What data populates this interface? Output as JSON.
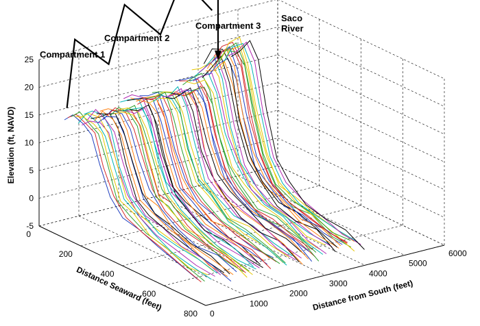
{
  "chart_data": {
    "type": "line",
    "subtype": "3d-profile-waterfall",
    "zlabel": "Elevation (ft, NAVD)",
    "xlabel": "Distance Seaward (feet)",
    "ylabel": "Distance from South (feet)",
    "xlim": [
      0,
      800
    ],
    "ylim": [
      0,
      6000
    ],
    "zlim": [
      -5,
      25
    ],
    "xticks": [
      "0",
      "200",
      "400",
      "600",
      "800"
    ],
    "yticks": [
      "0",
      "1000",
      "2000",
      "3000",
      "4000",
      "5000",
      "6000"
    ],
    "zticks": [
      "25",
      "20",
      "15",
      "10",
      "5",
      "0",
      "-5"
    ],
    "grid": true,
    "annotations": [
      {
        "text": "Compartment 1"
      },
      {
        "text": "Compartment 2"
      },
      {
        "text": "Compartment 3"
      },
      {
        "text": "Saco River"
      }
    ],
    "compartment_outline": {
      "color": "#000000",
      "points": [
        {
          "x": 0,
          "y": 700,
          "z": 15
        },
        {
          "x": 0,
          "y": 900,
          "z": 27
        },
        {
          "x": 0,
          "y": 1750,
          "z": 21
        },
        {
          "x": 0,
          "y": 2150,
          "z": 31
        },
        {
          "x": 0,
          "y": 3050,
          "z": 24
        },
        {
          "x": 0,
          "y": 3600,
          "z": 33
        },
        {
          "x": 0,
          "y": 4350,
          "z": 26
        }
      ]
    },
    "river_arrow": {
      "y": 4500,
      "z_from": 33,
      "z_to": 17
    },
    "profile_colors": [
      "#1f3fbf",
      "#d62728",
      "#2ca02c",
      "#e6c700",
      "#00b3b3",
      "#b026b0",
      "#000000",
      "#ff7f0e"
    ],
    "series": [
      {
        "y": 750,
        "offset": 0,
        "x": [
          0,
          40,
          90,
          130,
          170,
          220,
          280,
          360,
          450,
          550,
          640
        ],
        "z": [
          13,
          14.5,
          14.5,
          13,
          8,
          3,
          1,
          -1,
          -2,
          -3,
          -4
        ]
      },
      {
        "y": 1100,
        "offset": 10,
        "x": [
          0,
          40,
          90,
          130,
          170,
          220,
          280,
          360,
          450,
          550,
          640
        ],
        "z": [
          13,
          14.5,
          15,
          13,
          8,
          3,
          1,
          -1,
          -2,
          -3,
          -4
        ]
      },
      {
        "y": 1450,
        "offset": 20,
        "x": [
          0,
          40,
          90,
          130,
          170,
          220,
          280,
          360,
          450,
          550,
          640
        ],
        "z": [
          13,
          14.5,
          15,
          13,
          8,
          3,
          1,
          -1,
          -2,
          -3,
          -4
        ]
      },
      {
        "y": 1800,
        "offset": 30,
        "x": [
          0,
          40,
          90,
          130,
          170,
          220,
          280,
          360,
          450,
          550,
          640
        ],
        "z": [
          13,
          14.5,
          15.5,
          13,
          8,
          3,
          1,
          -1,
          -2,
          -3,
          -4
        ]
      },
      {
        "y": 2150,
        "offset": 0,
        "x": [
          0,
          40,
          90,
          130,
          170,
          220,
          280,
          360,
          450,
          550,
          640
        ],
        "z": [
          14,
          15,
          16,
          13.5,
          8,
          3,
          1,
          -1,
          -2,
          -3,
          -4
        ]
      },
      {
        "y": 2500,
        "offset": 10,
        "x": [
          0,
          40,
          90,
          130,
          170,
          220,
          280,
          360,
          450,
          550,
          640
        ],
        "z": [
          14,
          15,
          16,
          13.5,
          8,
          3,
          1,
          -1,
          -2,
          -3,
          -4
        ]
      },
      {
        "y": 2850,
        "offset": 20,
        "x": [
          0,
          40,
          90,
          130,
          170,
          220,
          280,
          360,
          450,
          550,
          640
        ],
        "z": [
          14,
          15,
          16.5,
          14,
          8,
          3,
          1,
          -1,
          -2,
          -3,
          -4
        ]
      },
      {
        "y": 3200,
        "offset": 30,
        "x": [
          0,
          40,
          90,
          130,
          170,
          220,
          280,
          360,
          450,
          550,
          640
        ],
        "z": [
          14,
          15,
          16.5,
          14,
          8,
          3,
          1,
          -1,
          -2,
          -3,
          -4
        ]
      },
      {
        "y": 3550,
        "offset": 0,
        "x": [
          0,
          40,
          90,
          130,
          170,
          220,
          280,
          360,
          450,
          550,
          640
        ],
        "z": [
          15,
          16,
          17.5,
          15,
          9,
          4,
          1,
          -1,
          -2,
          -3,
          -4
        ]
      },
      {
        "y": 3900,
        "offset": 10,
        "x": [
          0,
          40,
          90,
          130,
          170,
          220,
          280,
          360,
          450,
          550,
          640
        ],
        "z": [
          16,
          18,
          20,
          17,
          10,
          4,
          1,
          -1,
          -2,
          -3,
          -4
        ]
      },
      {
        "y": 4150,
        "offset": 20,
        "x": [
          0,
          40,
          90,
          130,
          170,
          220,
          280,
          360,
          450,
          550,
          640
        ],
        "z": [
          17,
          20,
          22,
          19,
          11,
          5,
          1,
          -1,
          -2,
          -3,
          -4
        ]
      },
      {
        "y": 4350,
        "offset": 30,
        "x": [
          0,
          40,
          90,
          130,
          170,
          220,
          280,
          360,
          450,
          550,
          640
        ],
        "z": [
          18,
          21,
          23,
          20,
          12,
          5,
          1,
          -1,
          -2,
          -3,
          -4
        ]
      }
    ]
  }
}
